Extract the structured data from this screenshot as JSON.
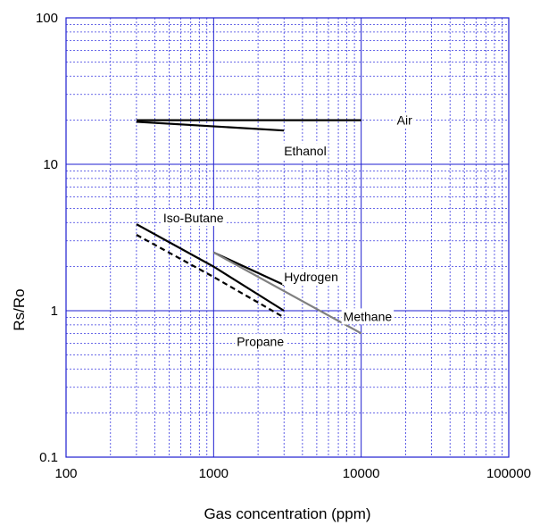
{
  "chart_data": {
    "type": "line",
    "xlabel": "Gas concentration (ppm)",
    "ylabel": "Rs/Ro",
    "xscale": "log",
    "yscale": "log",
    "xlim": [
      100,
      100000
    ],
    "ylim": [
      0.1,
      100
    ],
    "xticks": [
      "100",
      "1000",
      "10000",
      "100000"
    ],
    "yticks": [
      "0.1",
      "1",
      "10",
      "100"
    ],
    "grid": true,
    "series": [
      {
        "name": "Air",
        "color": "#000000",
        "dash": "solid",
        "x": [
          300,
          10000
        ],
        "y": [
          20,
          20
        ]
      },
      {
        "name": "Ethanol",
        "color": "#000000",
        "dash": "solid",
        "x": [
          300,
          3000
        ],
        "y": [
          19.5,
          17
        ]
      },
      {
        "name": "Iso-Butane",
        "color": "#000000",
        "dash": "solid",
        "x": [
          300,
          1000,
          3000
        ],
        "y": [
          3.9,
          2.0,
          1.0
        ]
      },
      {
        "name": "Propane",
        "color": "#000000",
        "dash": "dashed",
        "x": [
          300,
          1000,
          3000
        ],
        "y": [
          3.3,
          1.7,
          0.9
        ]
      },
      {
        "name": "Hydrogen",
        "color": "#000000",
        "dash": "solid",
        "x": [
          1000,
          3000
        ],
        "y": [
          2.5,
          1.5
        ]
      },
      {
        "name": "Methane",
        "color": "#808080",
        "dash": "solid",
        "x": [
          1000,
          10000
        ],
        "y": [
          2.5,
          0.7
        ]
      }
    ]
  }
}
